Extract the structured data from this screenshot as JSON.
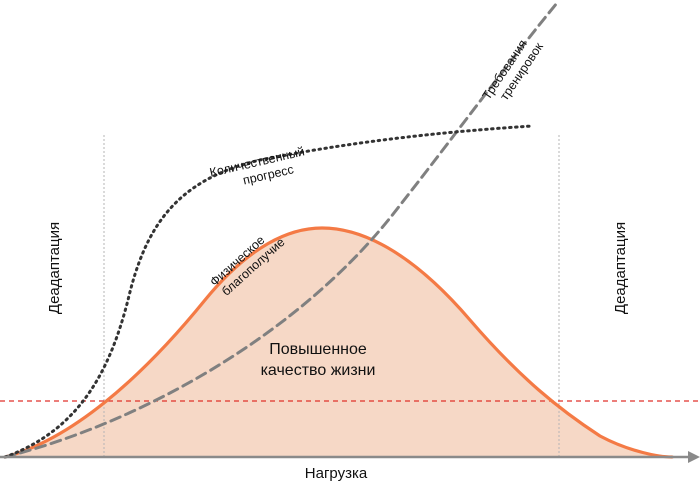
{
  "diagram": {
    "colors": {
      "accent": "#f47a45",
      "fill": "#f6d8c6",
      "dotted": "#333333",
      "dashed": "#808080",
      "threshold": "#e0312b",
      "axis": "#8a8a8a",
      "guide": "#b5b5b5"
    },
    "labels": {
      "side_left": "Деадаптация",
      "side_right": "Деадаптация",
      "x_axis": "Нагрузка",
      "quality_line1": "Повышенное",
      "quality_line2": "качество жизни",
      "progress_line1": "Количественный",
      "progress_line2": "прогресс",
      "wellbeing_line1": "Физическое",
      "wellbeing_line2": "благополучие",
      "requirements_line1": "Требования",
      "requirements_line2": "тренировок"
    },
    "curves": {
      "quantitative_progress": "dotted, sigmoid rising and flattening",
      "physical_wellbeing": "solid orange bell-shaped curve with shaded area",
      "training_requirements": "dashed grey, exponential growth",
      "threshold": "dashed red horizontal line"
    }
  }
}
